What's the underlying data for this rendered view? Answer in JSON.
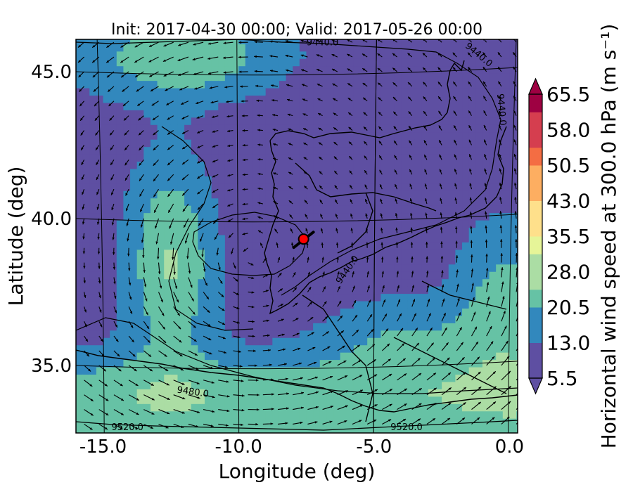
{
  "chart_data": {
    "type": "heatmap",
    "title": "Init: 2017-04-30 00:00; Valid: 2017-05-26 00:00",
    "xlabel": "Longitude (deg)",
    "ylabel": "Latitude (deg)",
    "xlim": [
      -16.0,
      0.3
    ],
    "ylim": [
      32.7,
      46.1
    ],
    "x_ticks": [
      "-15.0",
      "-10.0",
      "-5.0",
      "0.0"
    ],
    "x_tick_values": [
      -15,
      -10,
      -5,
      0
    ],
    "y_ticks": [
      "45.0",
      "40.0",
      "35.0"
    ],
    "y_tick_values": [
      45,
      40,
      35
    ],
    "colorbar": {
      "label": "Horizontal wind speed at 300.0 hPa (m s⁻¹)",
      "min": 5.5,
      "max": 65.5,
      "tick_labels": [
        "65.5",
        "58.0",
        "50.5",
        "43.0",
        "35.5",
        "28.0",
        "20.5",
        "13.0",
        "5.5"
      ],
      "tick_values": [
        65.5,
        58.0,
        50.5,
        43.0,
        35.5,
        28.0,
        20.5,
        13.0,
        5.5
      ],
      "extend": "both",
      "colormap": "Spectral_r",
      "colors": [
        "#5e4fa2",
        "#3288bd",
        "#66c2a5",
        "#abdda4",
        "#e6f598",
        "#fee08b",
        "#fdae61",
        "#f46d43",
        "#d53e4f",
        "#9e0142"
      ]
    },
    "contour_labels": [
      "9440.0",
      "9440.0",
      "9440.0",
      "9440.0",
      "9480.0",
      "9520.0",
      "9520.0"
    ],
    "marker": {
      "lon": -7.6,
      "lat": 39.3,
      "color": "#ff0000"
    },
    "grid": true,
    "field_overlays": [
      "wind-speed shading",
      "wind vectors",
      "geopotential height contours",
      "coastlines"
    ]
  }
}
